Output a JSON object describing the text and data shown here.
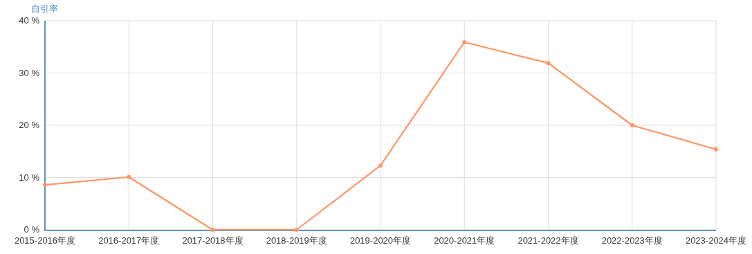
{
  "chart_data": {
    "type": "line",
    "ylabel": "自引率",
    "categories": [
      "2015-2016年度",
      "2016-2017年度",
      "2017-2018年度",
      "2018-2019年度",
      "2019-2020年度",
      "2020-2021年度",
      "2021-2022年度",
      "2022-2023年度",
      "2023-2024年度"
    ],
    "series": [
      {
        "color": "#ff9466",
        "values": [
          8.6,
          10.1,
          0,
          0,
          12.3,
          35.9,
          31.9,
          20.0,
          15.4
        ]
      }
    ],
    "ylim": [
      0,
      40
    ],
    "yticks": [
      {
        "value": 0,
        "label": "0 %"
      },
      {
        "value": 10,
        "label": "10 %"
      },
      {
        "value": 20,
        "label": "20 %"
      },
      {
        "value": 30,
        "label": "30 %"
      },
      {
        "value": 40,
        "label": "40 %"
      }
    ],
    "grid": true,
    "marker": "circle"
  }
}
